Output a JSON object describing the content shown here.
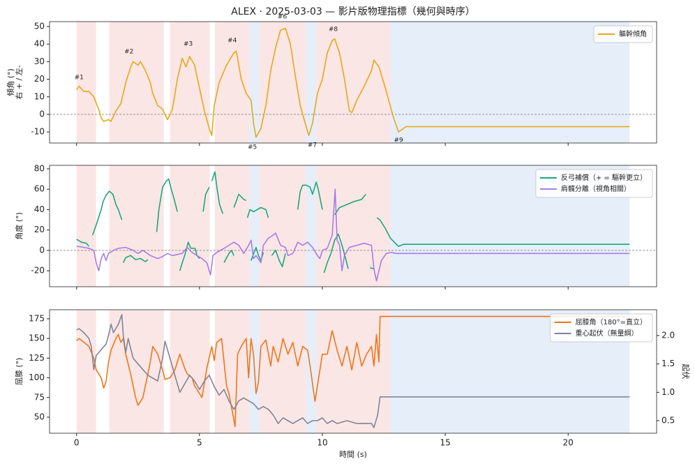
{
  "title": "ALEX · 2025-03-03 — 影片版物理指標（幾何與時序）",
  "spans": [
    {
      "x": [
        0,
        0.79
      ],
      "color": "#f9d6d6"
    },
    {
      "x": [
        1.33,
        3.55
      ],
      "color": "#f9d6d6"
    },
    {
      "x": [
        3.8,
        5.42
      ],
      "color": "#f9d6d6"
    },
    {
      "x": [
        5.62,
        7.04
      ],
      "color": "#f9d6d6"
    },
    {
      "x": [
        7.04,
        7.43
      ],
      "color": "#d6e2f7"
    },
    {
      "x": [
        7.43,
        9.33
      ],
      "color": "#f9d6d6"
    },
    {
      "x": [
        9.33,
        9.76
      ],
      "color": "#d6e2f7"
    },
    {
      "x": [
        9.76,
        12.77
      ],
      "color": "#f9d6d6"
    },
    {
      "x": [
        12.77,
        22.5
      ],
      "color": "#d6e2f7"
    }
  ],
  "chart_data": [
    {
      "type": "line",
      "ylabel_lines": [
        "傾角 (°)",
        "右 + / 左-"
      ],
      "xlim": [
        -1.1,
        23.6
      ],
      "ylim": [
        -16.3,
        52.8
      ],
      "yticks": [
        -10,
        0,
        10,
        20,
        30,
        40,
        50
      ],
      "hline": 0,
      "grid": false,
      "legend": "upper right",
      "series": [
        {
          "name": "軀幹傾角",
          "color": "#e6a817",
          "x": [
            0,
            0.1,
            0.3,
            0.5,
            0.7,
            0.9,
            1.0,
            1.1,
            1.3,
            1.4,
            1.6,
            1.8,
            2.0,
            2.2,
            2.3,
            2.5,
            2.6,
            2.8,
            3.0,
            3.1,
            3.3,
            3.5,
            3.6,
            3.7,
            3.9,
            4.1,
            4.3,
            4.45,
            4.6,
            4.8,
            5.0,
            5.2,
            5.4,
            5.5,
            5.6,
            5.8,
            6.1,
            6.4,
            6.5,
            6.7,
            6.9,
            7.1,
            7.2,
            7.3,
            7.5,
            7.7,
            7.9,
            8.1,
            8.3,
            8.5,
            8.7,
            8.9,
            9.1,
            9.3,
            9.45,
            9.6,
            9.8,
            10.0,
            10.2,
            10.4,
            10.5,
            10.7,
            10.9,
            11.1,
            11.2,
            11.4,
            11.7,
            12.0,
            12.1,
            12.3,
            12.5,
            12.7,
            12.9,
            13.1,
            13.4,
            22.5
          ],
          "values": [
            14,
            16,
            13,
            13,
            10,
            3,
            -2,
            -4,
            -3,
            -4,
            2,
            6,
            18,
            27,
            30,
            28,
            30,
            25,
            18,
            12,
            5,
            3,
            0,
            -3,
            3,
            20,
            32,
            27,
            33,
            28,
            15,
            2,
            -8,
            -12,
            5,
            18,
            28,
            35,
            36,
            20,
            12,
            8,
            -5,
            -13,
            -8,
            5,
            25,
            38,
            48,
            49,
            40,
            22,
            5,
            -5,
            -12,
            -5,
            12,
            20,
            35,
            42,
            43,
            35,
            20,
            2,
            1,
            8,
            16,
            25,
            31,
            27,
            18,
            8,
            -2,
            -10,
            -7,
            -7
          ]
        }
      ],
      "annotations": [
        {
          "text": "#1",
          "x": 0.1,
          "y": 21
        },
        {
          "text": "#2",
          "x": 2.13,
          "y": 35.7
        },
        {
          "text": "#3",
          "x": 4.54,
          "y": 40
        },
        {
          "text": "#4",
          "x": 6.33,
          "y": 42
        },
        {
          "text": "#5",
          "x": 7.15,
          "y": -18.7
        },
        {
          "text": "#6",
          "x": 8.37,
          "y": 55.5
        },
        {
          "text": "#7",
          "x": 9.59,
          "y": -17.5
        },
        {
          "text": "#8",
          "x": 10.44,
          "y": 48.4
        },
        {
          "text": "#9",
          "x": 13.1,
          "y": -14.7
        }
      ]
    },
    {
      "type": "line",
      "ylabel_lines": [
        "角度 (°)"
      ],
      "xlim": [
        -1.1,
        23.6
      ],
      "ylim": [
        -35.6,
        83.4
      ],
      "yticks": [
        -20,
        0,
        20,
        40,
        60,
        80
      ],
      "hline": 0,
      "grid": false,
      "legend": "upper right",
      "series": [
        {
          "name": "反弓補償（+ = 驅幹更立）",
          "color": "#1aa87a",
          "x": [
            0,
            0.2,
            0.4,
            0.5,
            null,
            0.65,
            0.8,
            1.0,
            1.08,
            1.2,
            1.33,
            1.48,
            1.6,
            1.7,
            1.84,
            null,
            1.9,
            2.0,
            2.2,
            2.4,
            2.6,
            2.8,
            2.9,
            null,
            3.26,
            3.35,
            3.5,
            3.65,
            3.75,
            3.85,
            3.95,
            4.1,
            null,
            4.2,
            4.3,
            4.4,
            4.54,
            4.65,
            4.82,
            4.9,
            5.0,
            null,
            5.15,
            5.25,
            5.4,
            null,
            5.5,
            5.63,
            5.72,
            5.82,
            5.95,
            null,
            6.0,
            6.2,
            6.3,
            6.4,
            null,
            6.4,
            6.6,
            6.8,
            6.9,
            null,
            7.1,
            7.3,
            7.4,
            7.5,
            7.6,
            null,
            6.95,
            7.05,
            7.2,
            7.5,
            7.7,
            7.8,
            null,
            7.94,
            8.1,
            8.25,
            8.37,
            8.5,
            null,
            9.0,
            9.1,
            9.2,
            9.35,
            9.5,
            9.6,
            9.75,
            9.85,
            10.0,
            null,
            10.07,
            10.2,
            10.35,
            10.5,
            10.65,
            10.8,
            10.95,
            11.05,
            null,
            10.5,
            10.7,
            11.0,
            11.3,
            11.6,
            11.77,
            null,
            11.94,
            12.1,
            null,
            12.22,
            12.34,
            12.55,
            12.77,
            13.05,
            13.1,
            13.3,
            22.5
          ],
          "values": [
            11,
            8,
            7,
            4,
            null,
            15,
            25,
            40,
            48,
            54,
            58,
            55,
            45,
            40,
            30,
            null,
            -12,
            -7,
            -5,
            -9,
            -8,
            -11,
            -9,
            null,
            18,
            40,
            62,
            68,
            70,
            60,
            52,
            38,
            null,
            -20,
            -12,
            -5,
            8,
            2,
            2,
            -5,
            -8,
            null,
            38,
            55,
            62,
            null,
            68,
            77,
            60,
            45,
            36,
            null,
            -12,
            -3,
            0,
            -5,
            null,
            42,
            55,
            50,
            49,
            null,
            -10,
            3,
            -5,
            -10,
            -2,
            null,
            32,
            40,
            38,
            42,
            40,
            32,
            null,
            -5,
            0,
            -10,
            -16,
            -3,
            null,
            40,
            58,
            64,
            64,
            62,
            55,
            67,
            58,
            40,
            null,
            -22,
            -12,
            -3,
            10,
            16,
            5,
            -8,
            -18,
            null,
            35,
            42,
            45,
            48,
            50,
            55,
            null,
            -17,
            -18,
            null,
            32,
            30,
            22,
            12,
            5,
            4,
            6,
            6
          ]
        },
        {
          "name": "肩髖分離（視角相關）",
          "color": "#a67de6",
          "x": [
            0,
            0.3,
            0.5,
            0.7,
            0.8,
            0.9,
            1.0,
            1.1,
            1.2,
            1.3,
            1.5,
            1.7,
            2.0,
            2.3,
            2.5,
            2.7,
            3.0,
            3.3,
            3.5,
            3.7,
            3.9,
            4.1,
            4.3,
            4.5,
            4.7,
            4.9,
            5.1,
            5.3,
            5.45,
            5.55,
            5.7,
            6.0,
            6.2,
            6.4,
            6.6,
            6.8,
            7.0,
            7.1,
            7.2,
            7.3,
            7.5,
            7.6,
            7.8,
            8.0,
            8.1,
            8.3,
            8.5,
            8.6,
            8.8,
            9.0,
            9.2,
            9.4,
            9.6,
            9.8,
            9.9,
            10.0,
            10.2,
            10.4,
            10.52,
            10.6,
            10.7,
            10.8,
            10.9,
            11.1,
            11.4,
            11.7,
            12.0,
            12.1,
            12.2,
            12.3,
            12.4,
            12.6,
            12.8,
            13.0,
            22.5
          ],
          "values": [
            4,
            3,
            2,
            0,
            -12,
            -20,
            -8,
            -3,
            -10,
            -3,
            0,
            2,
            3,
            0,
            -3,
            0,
            -5,
            -8,
            -6,
            -3,
            -5,
            -4,
            -3,
            3,
            -2,
            -5,
            -8,
            -12,
            -24,
            -5,
            -2,
            2,
            5,
            8,
            5,
            -3,
            5,
            10,
            -8,
            -5,
            -12,
            5,
            12,
            15,
            17,
            5,
            3,
            -5,
            -3,
            8,
            5,
            8,
            3,
            -5,
            -8,
            0,
            2,
            15,
            60,
            10,
            5,
            -20,
            -5,
            3,
            5,
            7,
            5,
            -18,
            -30,
            -20,
            -10,
            -3,
            -2,
            -3,
            -3
          ]
        }
      ]
    },
    {
      "type": "line",
      "ylabel_lines": [
        "屈膝 (°)"
      ],
      "y2label": "起伏",
      "xlabel": "時間 (s)",
      "xlim": [
        -1.1,
        23.6
      ],
      "xticks": [
        0,
        5,
        10,
        15,
        20
      ],
      "ylim": [
        29.6,
        186.5
      ],
      "yticks": [
        50,
        75,
        100,
        125,
        150,
        175
      ],
      "y2lim": [
        0.279,
        2.455
      ],
      "y2ticks": [
        0.5,
        {
          "value": 1,
          "label": "1.0"
        },
        1.5,
        {
          "value": 2,
          "label": "2.0"
        }
      ],
      "grid": false,
      "legend": "upper right",
      "series": [
        {
          "name": "屈膝角（180°=直立）",
          "color": "#f07518",
          "x": [
            0,
            0.1,
            0.3,
            0.5,
            0.7,
            0.8,
            1.0,
            1.1,
            1.2,
            1.3,
            1.4,
            1.6,
            1.7,
            1.8,
            1.9,
            2.0,
            2.2,
            2.4,
            2.5,
            2.7,
            2.9,
            3.0,
            3.1,
            3.3,
            3.5,
            3.6,
            3.8,
            4.0,
            4.2,
            4.4,
            4.5,
            4.7,
            4.8,
            5.0,
            5.1,
            5.3,
            5.5,
            5.6,
            5.7,
            5.9,
            6.0,
            6.1,
            6.2,
            6.35,
            6.45,
            6.55,
            6.7,
            6.9,
            7.0,
            7.1,
            7.2,
            7.3,
            7.4,
            7.5,
            7.7,
            7.9,
            8.0,
            8.2,
            8.4,
            8.6,
            8.8,
            9.0,
            9.2,
            9.4,
            9.5,
            9.7,
            9.8,
            10.0,
            10.2,
            10.4,
            10.6,
            10.8,
            11.0,
            11.2,
            11.4,
            11.6,
            11.8,
            12.0,
            12.1,
            12.2,
            12.3,
            12.35,
            13.0,
            22.5
          ],
          "values": [
            147,
            150,
            145,
            140,
            125,
            110,
            100,
            87,
            95,
            120,
            135,
            150,
            155,
            145,
            150,
            130,
            105,
            75,
            65,
            75,
            105,
            120,
            140,
            130,
            110,
            98,
            100,
            110,
            130,
            112,
            105,
            100,
            90,
            80,
            75,
            112,
            140,
            122,
            145,
            150,
            120,
            90,
            80,
            55,
            38,
            130,
            140,
            150,
            100,
            150,
            130,
            80,
            95,
            140,
            148,
            115,
            140,
            120,
            150,
            130,
            145,
            115,
            140,
            135,
            115,
            70,
            90,
            130,
            130,
            160,
            135,
            115,
            140,
            110,
            145,
            115,
            130,
            140,
            115,
            155,
            120,
            178,
            178,
            178
          ]
        },
        {
          "name": "重心起伏（無量綱）",
          "color": "#7f8596",
          "axis": "y2",
          "x": [
            0,
            0.1,
            0.3,
            0.5,
            0.6,
            0.7,
            0.8,
            1.0,
            1.2,
            1.3,
            1.4,
            1.5,
            1.7,
            1.84,
            1.9,
            2.0,
            2.1,
            2.3,
            2.5,
            2.7,
            2.9,
            3.1,
            3.3,
            3.5,
            3.6,
            3.8,
            4.0,
            4.2,
            4.4,
            4.6,
            4.8,
            5.0,
            5.2,
            5.4,
            5.6,
            5.8,
            6.0,
            6.2,
            6.4,
            6.6,
            6.8,
            7.0,
            7.2,
            7.4,
            7.6,
            7.8,
            8.0,
            8.2,
            8.4,
            8.6,
            8.8,
            9.0,
            9.2,
            9.4,
            9.6,
            9.8,
            10.0,
            10.2,
            10.4,
            10.6,
            11.0,
            11.4,
            12.0,
            12.1,
            12.25,
            12.35,
            22.5
          ],
          "values": [
            2.1,
            2.12,
            2.05,
            1.95,
            1.8,
            1.4,
            1.65,
            1.75,
            1.85,
            2.0,
            2.2,
            2.05,
            2.2,
            2.37,
            2.0,
            1.7,
            1.95,
            1.6,
            1.5,
            1.4,
            1.3,
            1.25,
            1.2,
            1.6,
            1.9,
            1.6,
            1.3,
            1.0,
            1.15,
            1.3,
            1.2,
            1.05,
            1.2,
            1.3,
            1.1,
            0.95,
            1.05,
            0.85,
            0.7,
            0.85,
            0.9,
            0.85,
            0.8,
            0.7,
            0.75,
            0.7,
            0.6,
            0.45,
            0.55,
            0.5,
            0.45,
            0.5,
            0.55,
            0.45,
            0.5,
            0.5,
            0.55,
            0.45,
            0.5,
            0.45,
            0.5,
            0.45,
            0.45,
            0.38,
            0.6,
            0.92,
            0.92
          ]
        }
      ]
    }
  ]
}
